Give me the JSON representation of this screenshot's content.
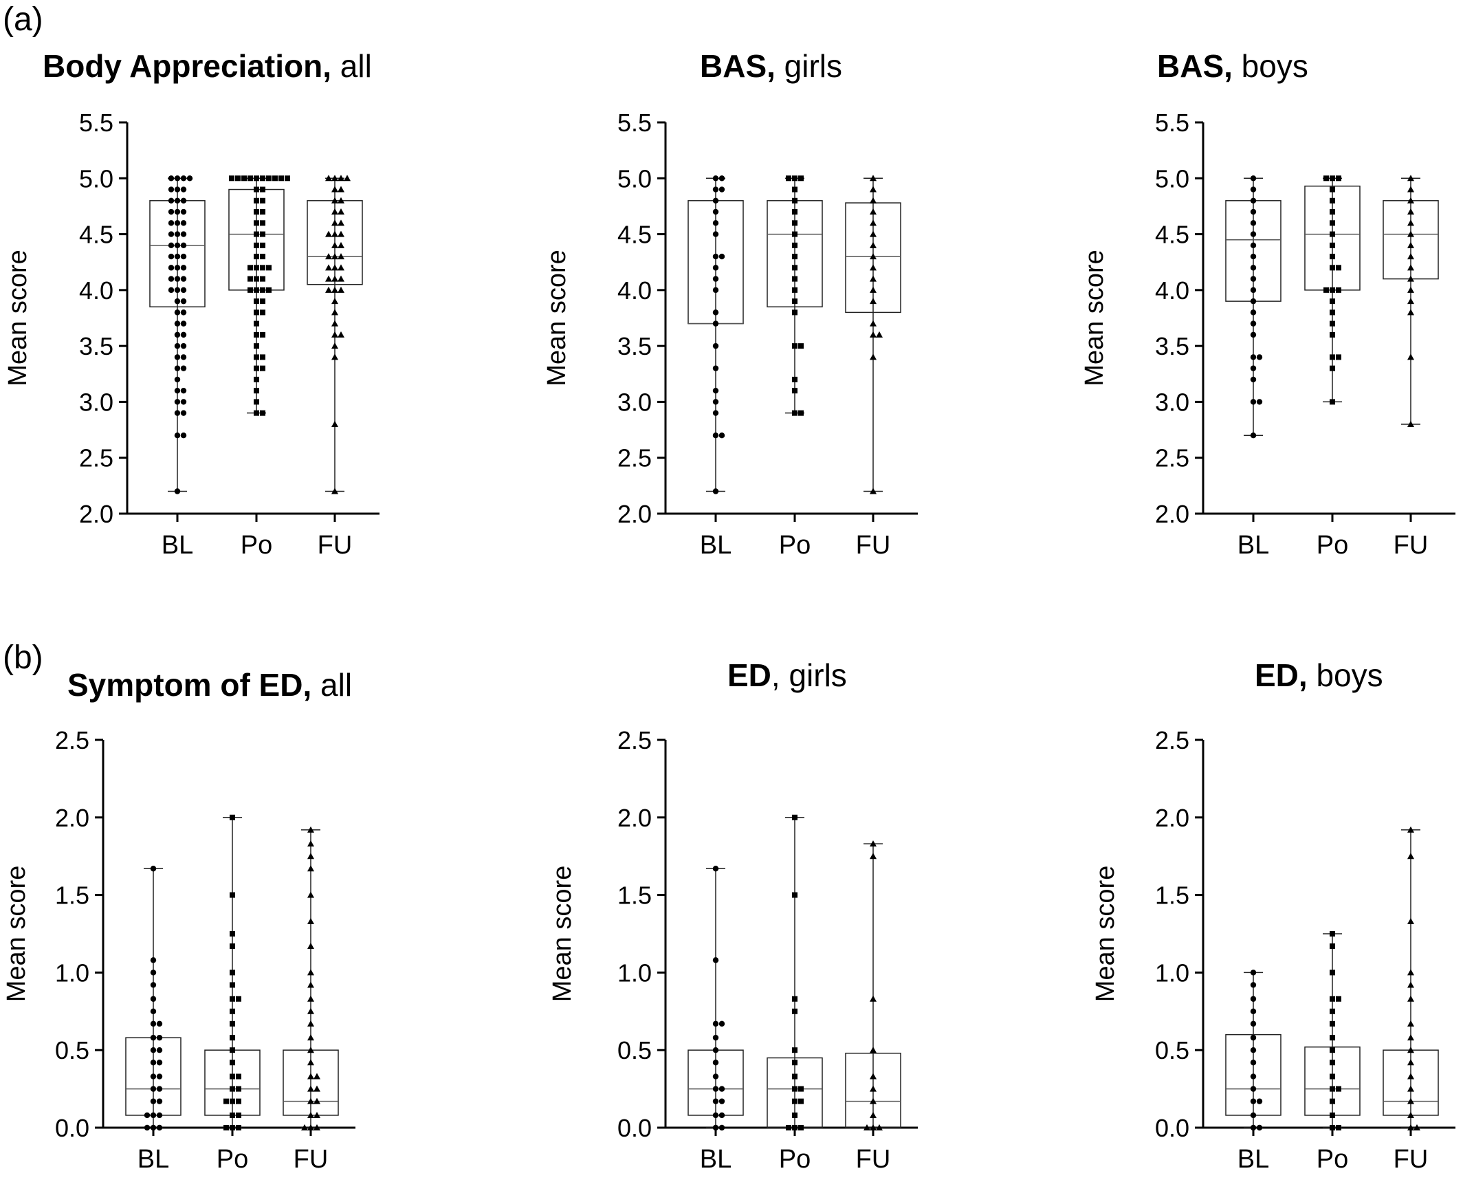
{
  "panels": [
    {
      "label": "(a)"
    },
    {
      "label": "(b)"
    }
  ],
  "chart_data": [
    {
      "type": "box",
      "title_bold": "Body Appreciation,",
      "title_rest": " all",
      "ylabel": "Mean score",
      "ylim": [
        2.0,
        5.5
      ],
      "yticks": [
        "2.0",
        "2.5",
        "3.0",
        "3.5",
        "4.0",
        "4.5",
        "5.0",
        "5.5"
      ],
      "categories": [
        "BL",
        "Po",
        "FU"
      ],
      "marker": "circle",
      "boxes": [
        {
          "min": 2.2,
          "q1": 3.85,
          "median": 4.4,
          "q3": 4.8,
          "max": 5.0
        },
        {
          "min": 2.9,
          "q1": 4.0,
          "median": 4.5,
          "q3": 4.9,
          "max": 5.0
        },
        {
          "min": 2.2,
          "q1": 4.05,
          "median": 4.3,
          "q3": 4.8,
          "max": 5.0
        }
      ],
      "points": [
        [
          2.2,
          2.7,
          2.7,
          2.9,
          2.9,
          3.0,
          3.0,
          3.1,
          3.1,
          3.2,
          3.3,
          3.3,
          3.4,
          3.4,
          3.5,
          3.5,
          3.6,
          3.6,
          3.7,
          3.7,
          3.8,
          3.8,
          3.9,
          3.9,
          4.0,
          4.0,
          4.0,
          4.1,
          4.1,
          4.1,
          4.2,
          4.2,
          4.2,
          4.3,
          4.3,
          4.3,
          4.4,
          4.4,
          4.4,
          4.5,
          4.5,
          4.5,
          4.6,
          4.6,
          4.6,
          4.7,
          4.7,
          4.7,
          4.8,
          4.8,
          4.8,
          4.9,
          4.9,
          4.9,
          5.0,
          5.0,
          5.0,
          5.0
        ],
        [
          2.9,
          2.9,
          3.0,
          3.1,
          3.2,
          3.3,
          3.3,
          3.4,
          3.4,
          3.5,
          3.6,
          3.6,
          3.7,
          3.8,
          3.8,
          3.9,
          3.9,
          4.0,
          4.0,
          4.0,
          4.0,
          4.1,
          4.1,
          4.1,
          4.2,
          4.2,
          4.2,
          4.2,
          4.3,
          4.3,
          4.4,
          4.4,
          4.5,
          4.5,
          4.6,
          4.6,
          4.7,
          4.7,
          4.8,
          4.8,
          4.9,
          4.9,
          5.0,
          5.0,
          5.0,
          5.0,
          5.0,
          5.0,
          5.0,
          5.0,
          5.0,
          5.0
        ],
        [
          2.2,
          2.8,
          3.4,
          3.5,
          3.6,
          3.6,
          3.7,
          3.8,
          3.9,
          4.0,
          4.0,
          4.0,
          4.1,
          4.1,
          4.1,
          4.2,
          4.2,
          4.2,
          4.3,
          4.3,
          4.3,
          4.4,
          4.4,
          4.5,
          4.5,
          4.5,
          4.6,
          4.6,
          4.7,
          4.7,
          4.8,
          4.8,
          4.9,
          4.9,
          5.0,
          5.0,
          5.0,
          5.0
        ]
      ]
    },
    {
      "type": "box",
      "title_bold": "BAS,",
      "title_rest": " girls",
      "ylabel": "Mean score",
      "ylim": [
        2.0,
        5.5
      ],
      "yticks": [
        "2.0",
        "2.5",
        "3.0",
        "3.5",
        "4.0",
        "4.5",
        "5.0",
        "5.5"
      ],
      "categories": [
        "BL",
        "Po",
        "FU"
      ],
      "marker": "mixed",
      "boxes": [
        {
          "min": 2.2,
          "q1": 3.7,
          "median": 3.7,
          "q3": 4.8,
          "max": 5.0
        },
        {
          "min": 2.9,
          "q1": 3.85,
          "median": 4.5,
          "q3": 4.8,
          "max": 5.0
        },
        {
          "min": 2.2,
          "q1": 3.8,
          "median": 4.3,
          "q3": 4.78,
          "max": 5.0
        }
      ],
      "points": [
        [
          2.2,
          2.7,
          2.7,
          2.9,
          3.0,
          3.1,
          3.3,
          3.5,
          3.7,
          3.8,
          4.0,
          4.1,
          4.2,
          4.3,
          4.3,
          4.5,
          4.6,
          4.7,
          4.8,
          4.9,
          4.9,
          5.0,
          5.0
        ],
        [
          2.9,
          2.9,
          3.1,
          3.2,
          3.5,
          3.5,
          3.8,
          3.9,
          4.0,
          4.1,
          4.2,
          4.3,
          4.4,
          4.5,
          4.6,
          4.7,
          4.8,
          4.9,
          5.0,
          5.0,
          5.0
        ],
        [
          2.2,
          3.4,
          3.6,
          3.6,
          3.7,
          3.9,
          4.0,
          4.1,
          4.2,
          4.3,
          4.4,
          4.5,
          4.6,
          4.7,
          4.8,
          4.9,
          5.0
        ]
      ]
    },
    {
      "type": "box",
      "title_bold": "BAS,",
      "title_rest": " boys",
      "ylabel": "Mean score",
      "ylim": [
        2.0,
        5.5
      ],
      "yticks": [
        "2.0",
        "2.5",
        "3.0",
        "3.5",
        "4.0",
        "4.5",
        "5.0",
        "5.5"
      ],
      "categories": [
        "BL",
        "Po",
        "FU"
      ],
      "marker": "mixed",
      "boxes": [
        {
          "min": 2.7,
          "q1": 3.9,
          "median": 4.45,
          "q3": 4.8,
          "max": 5.0
        },
        {
          "min": 3.0,
          "q1": 4.0,
          "median": 4.5,
          "q3": 4.93,
          "max": 5.0
        },
        {
          "min": 2.8,
          "q1": 4.1,
          "median": 4.5,
          "q3": 4.8,
          "max": 5.0
        }
      ],
      "points": [
        [
          2.7,
          3.0,
          3.0,
          3.2,
          3.3,
          3.4,
          3.4,
          3.6,
          3.7,
          3.8,
          3.9,
          4.0,
          4.1,
          4.2,
          4.3,
          4.4,
          4.5,
          4.6,
          4.7,
          4.8,
          4.9,
          5.0
        ],
        [
          3.0,
          3.3,
          3.4,
          3.4,
          3.6,
          3.7,
          3.8,
          3.9,
          4.0,
          4.0,
          4.0,
          4.2,
          4.2,
          4.3,
          4.4,
          4.5,
          4.6,
          4.7,
          4.8,
          4.9,
          5.0,
          5.0,
          5.0
        ],
        [
          2.8,
          3.4,
          3.8,
          3.9,
          4.0,
          4.1,
          4.2,
          4.3,
          4.4,
          4.5,
          4.6,
          4.7,
          4.8,
          4.9,
          5.0
        ]
      ]
    },
    {
      "type": "box",
      "title_bold": "Symptom of ED,",
      "title_rest": " all",
      "ylabel": "Mean score",
      "ylim": [
        0.0,
        2.5
      ],
      "yticks": [
        "0.0",
        "0.5",
        "1.0",
        "1.5",
        "2.0",
        "2.5"
      ],
      "categories": [
        "BL",
        "Po",
        "FU"
      ],
      "marker": "mixed",
      "boxes": [
        {
          "min": 0.0,
          "q1": 0.08,
          "median": 0.25,
          "q3": 0.58,
          "max": 1.67
        },
        {
          "min": 0.0,
          "q1": 0.08,
          "median": 0.25,
          "q3": 0.5,
          "max": 2.0
        },
        {
          "min": 0.0,
          "q1": 0.08,
          "median": 0.17,
          "q3": 0.5,
          "max": 1.92
        }
      ],
      "points": [
        [
          0,
          0,
          0,
          0.08,
          0.08,
          0.08,
          0.17,
          0.17,
          0.25,
          0.25,
          0.33,
          0.33,
          0.42,
          0.42,
          0.5,
          0.5,
          0.58,
          0.58,
          0.67,
          0.67,
          0.75,
          0.83,
          0.92,
          1.0,
          1.08,
          1.67
        ],
        [
          0,
          0,
          0,
          0.08,
          0.08,
          0.17,
          0.17,
          0.17,
          0.25,
          0.25,
          0.33,
          0.33,
          0.42,
          0.5,
          0.58,
          0.67,
          0.75,
          0.83,
          0.83,
          0.92,
          1.0,
          1.17,
          1.25,
          1.5,
          2.0
        ],
        [
          0,
          0,
          0,
          0.08,
          0.08,
          0.17,
          0.17,
          0.25,
          0.25,
          0.33,
          0.33,
          0.42,
          0.5,
          0.58,
          0.67,
          0.75,
          0.83,
          0.92,
          1.0,
          1.17,
          1.33,
          1.5,
          1.67,
          1.75,
          1.83,
          1.92
        ]
      ]
    },
    {
      "type": "box",
      "title_bold": "ED",
      "title_rest": ", girls",
      "ylabel": "Mean score",
      "ylim": [
        0.0,
        2.5
      ],
      "yticks": [
        "0.0",
        "0.5",
        "1.0",
        "1.5",
        "2.0",
        "2.5"
      ],
      "categories": [
        "BL",
        "Po",
        "FU"
      ],
      "marker": "mixed",
      "boxes": [
        {
          "min": 0.0,
          "q1": 0.08,
          "median": 0.25,
          "q3": 0.5,
          "max": 1.67
        },
        {
          "min": 0.0,
          "q1": 0.0,
          "median": 0.25,
          "q3": 0.45,
          "max": 2.0
        },
        {
          "min": 0.0,
          "q1": 0.0,
          "median": 0.17,
          "q3": 0.48,
          "max": 1.83
        }
      ],
      "points": [
        [
          0,
          0,
          0.08,
          0.08,
          0.17,
          0.17,
          0.25,
          0.25,
          0.33,
          0.42,
          0.5,
          0.58,
          0.67,
          0.67,
          1.08,
          1.67
        ],
        [
          0,
          0,
          0,
          0.08,
          0.17,
          0.17,
          0.25,
          0.25,
          0.33,
          0.42,
          0.5,
          0.75,
          0.83,
          1.5,
          2.0
        ],
        [
          0,
          0,
          0,
          0.08,
          0.17,
          0.25,
          0.33,
          0.5,
          0.83,
          1.75,
          1.83
        ]
      ]
    },
    {
      "type": "box",
      "title_bold": "ED,",
      "title_rest": " boys",
      "ylabel": "Mean score",
      "ylim": [
        0.0,
        2.5
      ],
      "yticks": [
        "0.0",
        "0.5",
        "1.0",
        "1.5",
        "2.0",
        "2.5"
      ],
      "categories": [
        "BL",
        "Po",
        "FU"
      ],
      "marker": "mixed",
      "boxes": [
        {
          "min": 0.0,
          "q1": 0.08,
          "median": 0.25,
          "q3": 0.6,
          "max": 1.0
        },
        {
          "min": 0.0,
          "q1": 0.08,
          "median": 0.25,
          "q3": 0.52,
          "max": 1.25
        },
        {
          "min": 0.0,
          "q1": 0.08,
          "median": 0.17,
          "q3": 0.5,
          "max": 1.92
        }
      ],
      "points": [
        [
          0,
          0,
          0.08,
          0.17,
          0.17,
          0.25,
          0.33,
          0.42,
          0.5,
          0.58,
          0.67,
          0.75,
          0.83,
          0.92,
          1.0
        ],
        [
          0,
          0,
          0.08,
          0.17,
          0.25,
          0.25,
          0.33,
          0.42,
          0.5,
          0.58,
          0.67,
          0.75,
          0.83,
          0.83,
          1.0,
          1.17,
          1.25
        ],
        [
          0,
          0,
          0.08,
          0.17,
          0.25,
          0.33,
          0.42,
          0.5,
          0.58,
          0.67,
          0.83,
          0.92,
          1.0,
          1.33,
          1.75,
          1.92
        ]
      ]
    }
  ]
}
